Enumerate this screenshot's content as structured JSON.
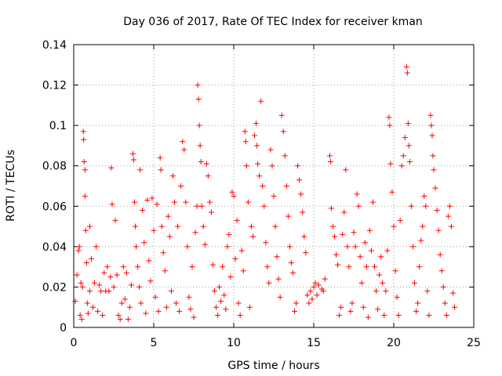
{
  "chart_data": {
    "type": "scatter",
    "title": "Day 036 of 2017, Rate Of TEC Index for receiver kman",
    "xlabel": "GPS time / hours",
    "ylabel": "ROTI / TECUs",
    "xlim": [
      0,
      25
    ],
    "ylim": [
      0,
      0.14
    ],
    "xticks": [
      0,
      5,
      10,
      15,
      20,
      25
    ],
    "yticks": [
      0,
      0.02,
      0.04,
      0.06,
      0.08,
      0.1,
      0.12,
      0.14
    ],
    "xtick_labels": [
      "0",
      "5",
      "10",
      "15",
      "20",
      "25"
    ],
    "ytick_labels": [
      "0",
      "0.02",
      "0.04",
      "0.06",
      "0.08",
      "0.1",
      "0.12",
      "0.14"
    ],
    "grid": true,
    "marker": "+",
    "color": "#ff0000",
    "points": [
      [
        0.1,
        0.013
      ],
      [
        0.2,
        0.026
      ],
      [
        0.3,
        0.038
      ],
      [
        0.35,
        0.04
      ],
      [
        0.4,
        0.006
      ],
      [
        0.45,
        0.022
      ],
      [
        0.5,
        0.004
      ],
      [
        0.55,
        0.02
      ],
      [
        0.6,
        0.097
      ],
      [
        0.62,
        0.093
      ],
      [
        0.65,
        0.082
      ],
      [
        0.7,
        0.078
      ],
      [
        0.7,
        0.065
      ],
      [
        0.75,
        0.048
      ],
      [
        0.8,
        0.032
      ],
      [
        0.85,
        0.012
      ],
      [
        0.9,
        0.007
      ],
      [
        1.0,
        0.05
      ],
      [
        1.0,
        0.018
      ],
      [
        1.1,
        0.034
      ],
      [
        1.2,
        0.01
      ],
      [
        1.3,
        0.022
      ],
      [
        1.4,
        0.04
      ],
      [
        1.5,
        0.008
      ],
      [
        1.6,
        0.021
      ],
      [
        1.7,
        0.018
      ],
      [
        1.8,
        0.006
      ],
      [
        1.9,
        0.027
      ],
      [
        2.0,
        0.018
      ],
      [
        2.1,
        0.03
      ],
      [
        2.2,
        0.018
      ],
      [
        2.3,
        0.025
      ],
      [
        2.35,
        0.079
      ],
      [
        2.4,
        0.061
      ],
      [
        2.5,
        0.02
      ],
      [
        2.6,
        0.053
      ],
      [
        2.7,
        0.026
      ],
      [
        2.8,
        0.006
      ],
      [
        2.9,
        0.004
      ],
      [
        3.0,
        0.012
      ],
      [
        3.1,
        0.03
      ],
      [
        3.2,
        0.014
      ],
      [
        3.3,
        0.027
      ],
      [
        3.4,
        0.004
      ],
      [
        3.5,
        0.01
      ],
      [
        3.6,
        0.021
      ],
      [
        3.7,
        0.086
      ],
      [
        3.75,
        0.083
      ],
      [
        3.8,
        0.062
      ],
      [
        3.85,
        0.05
      ],
      [
        3.9,
        0.04
      ],
      [
        4.0,
        0.03
      ],
      [
        4.1,
        0.02
      ],
      [
        4.15,
        0.078
      ],
      [
        4.2,
        0.012
      ],
      [
        4.3,
        0.058
      ],
      [
        4.4,
        0.042
      ],
      [
        4.5,
        0.007
      ],
      [
        4.6,
        0.063
      ],
      [
        4.7,
        0.033
      ],
      [
        4.8,
        0.023
      ],
      [
        4.9,
        0.064
      ],
      [
        5.0,
        0.048
      ],
      [
        5.1,
        0.015
      ],
      [
        5.2,
        0.061
      ],
      [
        5.3,
        0.008
      ],
      [
        5.4,
        0.084
      ],
      [
        5.45,
        0.078
      ],
      [
        5.5,
        0.05
      ],
      [
        5.6,
        0.037
      ],
      [
        5.7,
        0.028
      ],
      [
        5.8,
        0.01
      ],
      [
        5.9,
        0.055
      ],
      [
        6.0,
        0.045
      ],
      [
        6.1,
        0.018
      ],
      [
        6.2,
        0.075
      ],
      [
        6.3,
        0.062
      ],
      [
        6.4,
        0.012
      ],
      [
        6.5,
        0.05
      ],
      [
        6.6,
        0.008
      ],
      [
        6.7,
        0.07
      ],
      [
        6.8,
        0.092
      ],
      [
        6.9,
        0.088
      ],
      [
        7.0,
        0.062
      ],
      [
        7.1,
        0.04
      ],
      [
        7.2,
        0.015
      ],
      [
        7.3,
        0.009
      ],
      [
        7.4,
        0.03
      ],
      [
        7.5,
        0.005
      ],
      [
        7.6,
        0.047
      ],
      [
        7.7,
        0.06
      ],
      [
        7.75,
        0.12
      ],
      [
        7.8,
        0.113
      ],
      [
        7.85,
        0.1
      ],
      [
        7.9,
        0.09
      ],
      [
        7.95,
        0.082
      ],
      [
        8.0,
        0.06
      ],
      [
        8.1,
        0.05
      ],
      [
        8.2,
        0.041
      ],
      [
        8.3,
        0.081
      ],
      [
        8.4,
        0.075
      ],
      [
        8.5,
        0.062
      ],
      [
        8.6,
        0.057
      ],
      [
        8.7,
        0.031
      ],
      [
        8.8,
        0.018
      ],
      [
        8.9,
        0.01
      ],
      [
        9.0,
        0.006
      ],
      [
        9.1,
        0.02
      ],
      [
        9.2,
        0.013
      ],
      [
        9.3,
        0.03
      ],
      [
        9.4,
        0.016
      ],
      [
        9.5,
        0.009
      ],
      [
        9.6,
        0.04
      ],
      [
        9.7,
        0.046
      ],
      [
        9.8,
        0.025
      ],
      [
        9.9,
        0.067
      ],
      [
        10.0,
        0.065
      ],
      [
        10.1,
        0.034
      ],
      [
        10.2,
        0.053
      ],
      [
        10.3,
        0.012
      ],
      [
        10.4,
        0.006
      ],
      [
        10.5,
        0.038
      ],
      [
        10.6,
        0.028
      ],
      [
        10.7,
        0.097
      ],
      [
        10.75,
        0.092
      ],
      [
        10.8,
        0.08
      ],
      [
        10.9,
        0.062
      ],
      [
        11.0,
        0.01
      ],
      [
        11.1,
        0.05
      ],
      [
        11.2,
        0.045
      ],
      [
        11.3,
        0.095
      ],
      [
        11.4,
        0.101
      ],
      [
        11.45,
        0.09
      ],
      [
        11.5,
        0.081
      ],
      [
        11.6,
        0.075
      ],
      [
        11.7,
        0.112
      ],
      [
        11.8,
        0.07
      ],
      [
        11.9,
        0.06
      ],
      [
        12.0,
        0.042
      ],
      [
        12.1,
        0.03
      ],
      [
        12.2,
        0.022
      ],
      [
        12.3,
        0.088
      ],
      [
        12.4,
        0.08
      ],
      [
        12.5,
        0.065
      ],
      [
        12.6,
        0.05
      ],
      [
        12.7,
        0.035
      ],
      [
        12.8,
        0.024
      ],
      [
        12.9,
        0.015
      ],
      [
        13.0,
        0.105
      ],
      [
        13.1,
        0.097
      ],
      [
        13.2,
        0.085
      ],
      [
        13.3,
        0.07
      ],
      [
        13.4,
        0.055
      ],
      [
        13.5,
        0.04
      ],
      [
        13.6,
        0.032
      ],
      [
        13.7,
        0.027
      ],
      [
        13.8,
        0.008
      ],
      [
        13.9,
        0.012
      ],
      [
        14.0,
        0.08
      ],
      [
        14.1,
        0.073
      ],
      [
        14.2,
        0.066
      ],
      [
        14.3,
        0.057
      ],
      [
        14.4,
        0.045
      ],
      [
        14.5,
        0.037
      ],
      [
        14.6,
        0.016
      ],
      [
        14.7,
        0.012
      ],
      [
        14.8,
        0.018
      ],
      [
        14.9,
        0.014
      ],
      [
        15.0,
        0.02
      ],
      [
        15.1,
        0.022
      ],
      [
        15.2,
        0.016
      ],
      [
        15.3,
        0.021
      ],
      [
        15.5,
        0.019
      ],
      [
        15.6,
        0.018
      ],
      [
        15.7,
        0.024
      ],
      [
        16.0,
        0.085
      ],
      [
        16.05,
        0.082
      ],
      [
        16.1,
        0.059
      ],
      [
        16.2,
        0.05
      ],
      [
        16.3,
        0.045
      ],
      [
        16.4,
        0.036
      ],
      [
        16.5,
        0.031
      ],
      [
        16.6,
        0.006
      ],
      [
        16.7,
        0.01
      ],
      [
        16.8,
        0.046
      ],
      [
        16.9,
        0.057
      ],
      [
        17.0,
        0.078
      ],
      [
        17.1,
        0.04
      ],
      [
        17.2,
        0.03
      ],
      [
        17.3,
        0.008
      ],
      [
        17.4,
        0.012
      ],
      [
        17.5,
        0.047
      ],
      [
        17.6,
        0.04
      ],
      [
        17.7,
        0.066
      ],
      [
        17.8,
        0.06
      ],
      [
        17.9,
        0.035
      ],
      [
        18.0,
        0.022
      ],
      [
        18.1,
        0.01
      ],
      [
        18.2,
        0.042
      ],
      [
        18.3,
        0.03
      ],
      [
        18.4,
        0.005
      ],
      [
        18.5,
        0.048
      ],
      [
        18.6,
        0.038
      ],
      [
        18.7,
        0.062
      ],
      [
        18.8,
        0.03
      ],
      [
        18.9,
        0.018
      ],
      [
        19.0,
        0.009
      ],
      [
        19.1,
        0.026
      ],
      [
        19.2,
        0.035
      ],
      [
        19.3,
        0.022
      ],
      [
        19.4,
        0.006
      ],
      [
        19.5,
        0.018
      ],
      [
        19.6,
        0.038
      ],
      [
        19.7,
        0.104
      ],
      [
        19.75,
        0.1
      ],
      [
        19.8,
        0.081
      ],
      [
        19.9,
        0.067
      ],
      [
        20.0,
        0.05
      ],
      [
        20.1,
        0.028
      ],
      [
        20.2,
        0.015
      ],
      [
        20.3,
        0.006
      ],
      [
        20.4,
        0.053
      ],
      [
        20.5,
        0.08
      ],
      [
        20.6,
        0.085
      ],
      [
        20.7,
        0.094
      ],
      [
        20.8,
        0.129
      ],
      [
        20.85,
        0.126
      ],
      [
        20.9,
        0.101
      ],
      [
        20.95,
        0.09
      ],
      [
        21.0,
        0.082
      ],
      [
        21.1,
        0.06
      ],
      [
        21.2,
        0.04
      ],
      [
        21.3,
        0.022
      ],
      [
        21.4,
        0.008
      ],
      [
        21.5,
        0.012
      ],
      [
        21.6,
        0.03
      ],
      [
        21.7,
        0.043
      ],
      [
        21.8,
        0.05
      ],
      [
        21.9,
        0.065
      ],
      [
        22.0,
        0.06
      ],
      [
        22.1,
        0.018
      ],
      [
        22.2,
        0.006
      ],
      [
        22.3,
        0.105
      ],
      [
        22.35,
        0.1
      ],
      [
        22.4,
        0.095
      ],
      [
        22.45,
        0.085
      ],
      [
        22.5,
        0.078
      ],
      [
        22.6,
        0.069
      ],
      [
        22.7,
        0.058
      ],
      [
        22.8,
        0.048
      ],
      [
        22.9,
        0.036
      ],
      [
        23.0,
        0.028
      ],
      [
        23.1,
        0.02
      ],
      [
        23.2,
        0.012
      ],
      [
        23.3,
        0.006
      ],
      [
        23.4,
        0.055
      ],
      [
        23.5,
        0.06
      ],
      [
        23.6,
        0.05
      ],
      [
        23.7,
        0.017
      ],
      [
        23.8,
        0.01
      ]
    ]
  }
}
